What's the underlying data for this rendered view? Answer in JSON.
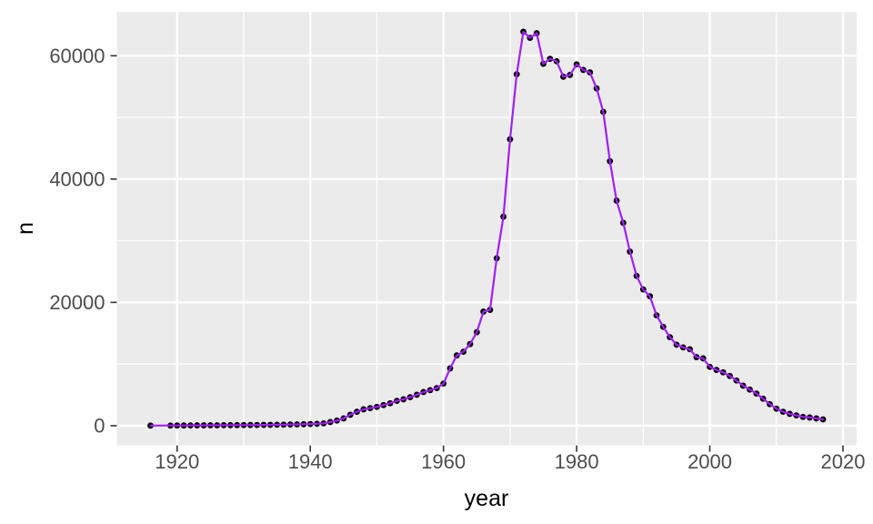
{
  "page": {
    "background": "#FFFFFF"
  },
  "chart_data": {
    "type": "line",
    "title": "",
    "xlabel": "year",
    "ylabel": "n",
    "legend": "none",
    "grid": "white-on-gray (ggplot2 theme_gray), major + minor gridlines",
    "panel_bg": "#EBEBEB",
    "grid_color": "#FFFFFF",
    "line_color": "#A020F0",
    "point_color": "#000000",
    "tick_label_color": "#4D4D4D",
    "axis_title_color": "#000000",
    "xlim": [
      1910.95,
      2022.05
    ],
    "ylim": [
      -3195,
      67095
    ],
    "x_ticks": {
      "values": [
        1920,
        1940,
        1960,
        1980,
        2000,
        2020
      ],
      "labels": [
        "1920",
        "1940",
        "1960",
        "1980",
        "2000",
        "2020"
      ]
    },
    "x_minor_ticks": [
      1930,
      1950,
      1970,
      1990,
      2010
    ],
    "y_ticks": {
      "values": [
        0,
        20000,
        40000,
        60000
      ],
      "labels": [
        "0",
        "20000",
        "40000",
        "60000"
      ]
    },
    "y_minor_ticks": [
      10000,
      30000,
      50000
    ],
    "series": [
      {
        "name": "n",
        "x": [
          1916,
          1917,
          1918,
          1919,
          1920,
          1921,
          1922,
          1923,
          1924,
          1925,
          1926,
          1927,
          1928,
          1929,
          1930,
          1931,
          1932,
          1933,
          1934,
          1935,
          1936,
          1937,
          1938,
          1939,
          1940,
          1941,
          1942,
          1943,
          1944,
          1945,
          1946,
          1947,
          1948,
          1949,
          1950,
          1951,
          1952,
          1953,
          1954,
          1955,
          1956,
          1957,
          1958,
          1959,
          1960,
          1961,
          1962,
          1963,
          1964,
          1965,
          1966,
          1967,
          1968,
          1969,
          1970,
          1971,
          1972,
          1973,
          1974,
          1975,
          1976,
          1977,
          1978,
          1979,
          1980,
          1981,
          1982,
          1983,
          1984,
          1985,
          1986,
          1987,
          1988,
          1989,
          1990,
          1991,
          1992,
          1993,
          1994,
          1995,
          1996,
          1997,
          1998,
          1999,
          2000,
          2001,
          2002,
          2003,
          2004,
          2005,
          2006,
          2007,
          2008,
          2009,
          2010,
          2011,
          2012,
          2013,
          2014,
          2015,
          2016,
          2017
        ],
        "y": [
          20,
          null,
          null,
          30,
          35,
          40,
          45,
          55,
          60,
          65,
          70,
          80,
          90,
          95,
          100,
          110,
          120,
          130,
          145,
          160,
          175,
          195,
          215,
          240,
          270,
          310,
          380,
          590,
          840,
          1180,
          1770,
          2260,
          2660,
          2850,
          3050,
          3350,
          3640,
          4030,
          4280,
          4620,
          5020,
          5460,
          5760,
          6100,
          6830,
          9300,
          11400,
          12000,
          13240,
          15160,
          18500,
          18790,
          27160,
          33900,
          46450,
          57000,
          63900,
          62900,
          63650,
          58700,
          59500,
          59100,
          56600,
          56900,
          58600,
          57700,
          57300,
          54700,
          50900,
          42900,
          36500,
          32900,
          28240,
          24300,
          22100,
          21000,
          17900,
          16040,
          14360,
          13140,
          12700,
          12400,
          11120,
          10920,
          9550,
          9050,
          8660,
          8070,
          7330,
          6490,
          5860,
          5210,
          4380,
          3500,
          2760,
          2260,
          1920,
          1670,
          1430,
          1330,
          1180,
          1030
        ]
      }
    ]
  }
}
